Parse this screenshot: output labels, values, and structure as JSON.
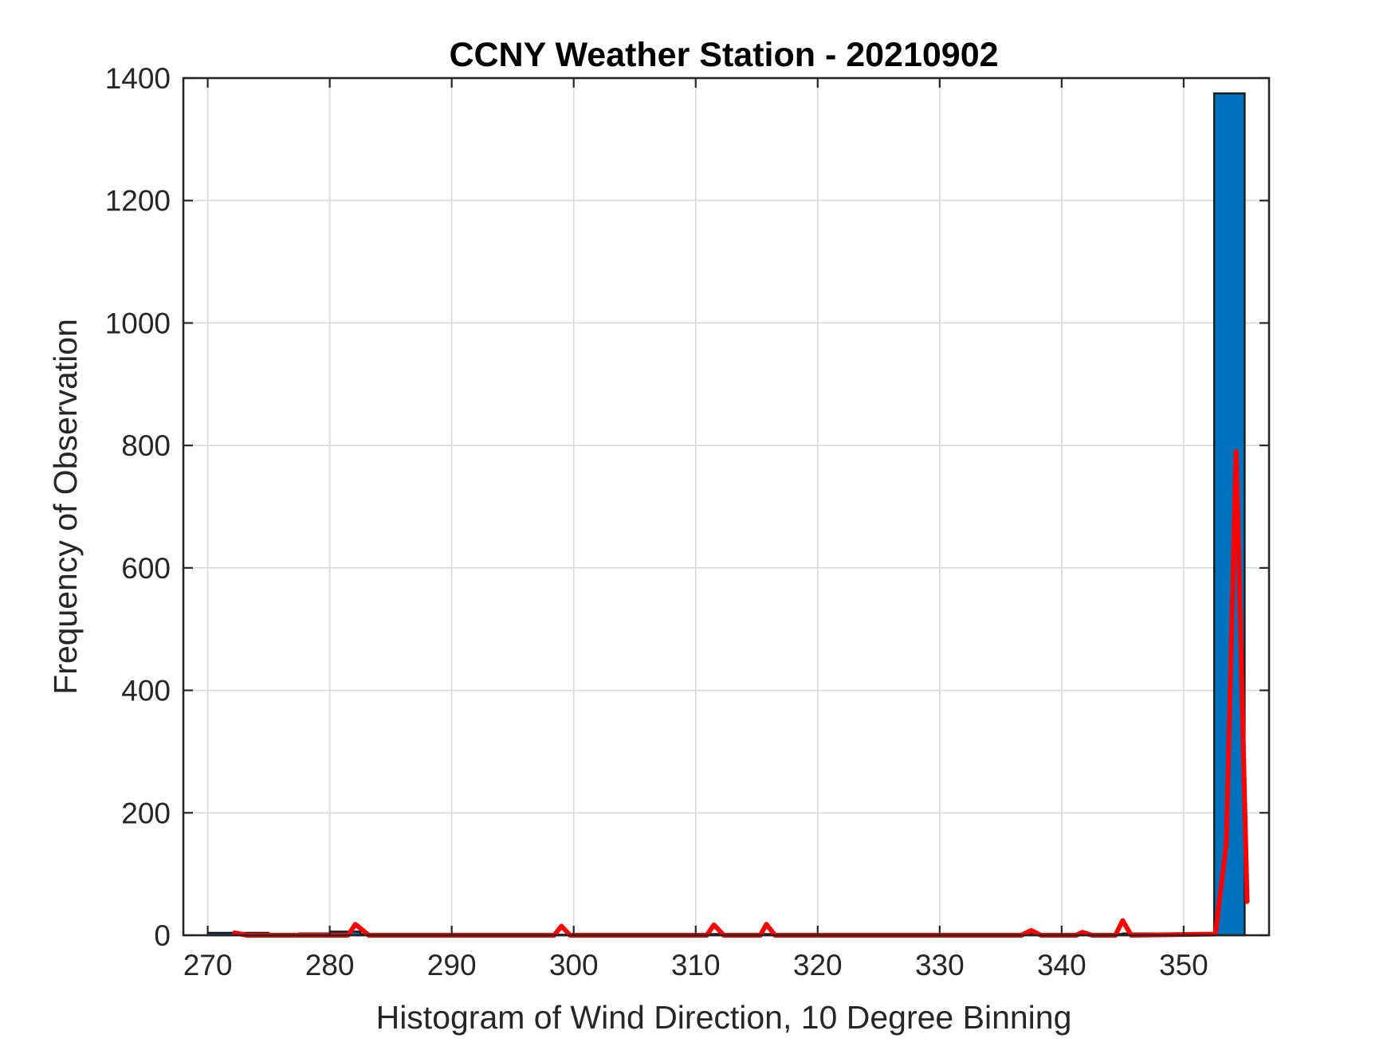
{
  "chart_data": {
    "type": "bar",
    "title": "CCNY Weather Station - 20210902",
    "xlabel": "Histogram of Wind Direction, 10 Degree Binning",
    "ylabel": "Frequency of Observation",
    "xlim": [
      268,
      357
    ],
    "ylim": [
      0,
      1400
    ],
    "xticks": [
      "270",
      "280",
      "290",
      "300",
      "310",
      "320",
      "330",
      "340",
      "350"
    ],
    "yticks": [
      "0",
      "200",
      "400",
      "600",
      "800",
      "1000",
      "1200",
      "1400"
    ],
    "grid": true,
    "bar_color": "#0072BD",
    "line_color": "#FF0000",
    "bars": [
      {
        "x0": 270,
        "x1": 272.5,
        "value": 4
      },
      {
        "x0": 272.5,
        "x1": 275,
        "value": 4
      },
      {
        "x0": 275,
        "x1": 277.5,
        "value": 2
      },
      {
        "x0": 277.5,
        "x1": 280,
        "value": 3
      },
      {
        "x0": 280,
        "x1": 282.5,
        "value": 6
      },
      {
        "x0": 282.5,
        "x1": 285,
        "value": 2
      },
      {
        "x0": 285,
        "x1": 287.5,
        "value": 1
      },
      {
        "x0": 287.5,
        "x1": 290,
        "value": 1
      },
      {
        "x0": 290,
        "x1": 292.5,
        "value": 1
      },
      {
        "x0": 292.5,
        "x1": 295,
        "value": 1
      },
      {
        "x0": 295,
        "x1": 297.5,
        "value": 1
      },
      {
        "x0": 297.5,
        "x1": 300,
        "value": 1
      },
      {
        "x0": 300,
        "x1": 302.5,
        "value": 1
      },
      {
        "x0": 302.5,
        "x1": 305,
        "value": 1
      },
      {
        "x0": 305,
        "x1": 307.5,
        "value": 1
      },
      {
        "x0": 307.5,
        "x1": 310,
        "value": 1
      },
      {
        "x0": 310,
        "x1": 312.5,
        "value": 2
      },
      {
        "x0": 312.5,
        "x1": 315,
        "value": 1
      },
      {
        "x0": 315,
        "x1": 317.5,
        "value": 2
      },
      {
        "x0": 317.5,
        "x1": 320,
        "value": 1
      },
      {
        "x0": 320,
        "x1": 322.5,
        "value": 1
      },
      {
        "x0": 322.5,
        "x1": 325,
        "value": 1
      },
      {
        "x0": 325,
        "x1": 327.5,
        "value": 1
      },
      {
        "x0": 327.5,
        "x1": 330,
        "value": 1
      },
      {
        "x0": 330,
        "x1": 332.5,
        "value": 1
      },
      {
        "x0": 332.5,
        "x1": 335,
        "value": 1
      },
      {
        "x0": 335,
        "x1": 337.5,
        "value": 1
      },
      {
        "x0": 337.5,
        "x1": 340,
        "value": 2
      },
      {
        "x0": 340,
        "x1": 342.5,
        "value": 2
      },
      {
        "x0": 342.5,
        "x1": 345,
        "value": 2
      },
      {
        "x0": 345,
        "x1": 347.5,
        "value": 3
      },
      {
        "x0": 347.5,
        "x1": 350,
        "value": 2
      },
      {
        "x0": 350,
        "x1": 352.5,
        "value": 3
      },
      {
        "x0": 352.5,
        "x1": 355,
        "value": 1375
      }
    ],
    "series": [
      {
        "type": "line",
        "x": [
          272.2,
          273.2,
          281.5,
          282.1,
          283.2,
          298.4,
          299.0,
          299.7,
          310.9,
          311.5,
          312.3,
          315.3,
          315.8,
          316.5,
          336.7,
          337.5,
          338.3,
          341.2,
          341.7,
          342.5,
          344.4,
          345.0,
          345.7,
          352.6,
          353.5,
          354.3,
          355.2
        ],
        "y": [
          4,
          0,
          0,
          18,
          0,
          0,
          15,
          0,
          0,
          17,
          0,
          0,
          18,
          0,
          0,
          8,
          0,
          0,
          5,
          0,
          0,
          24,
          0,
          2,
          150,
          790,
          55
        ]
      }
    ]
  }
}
